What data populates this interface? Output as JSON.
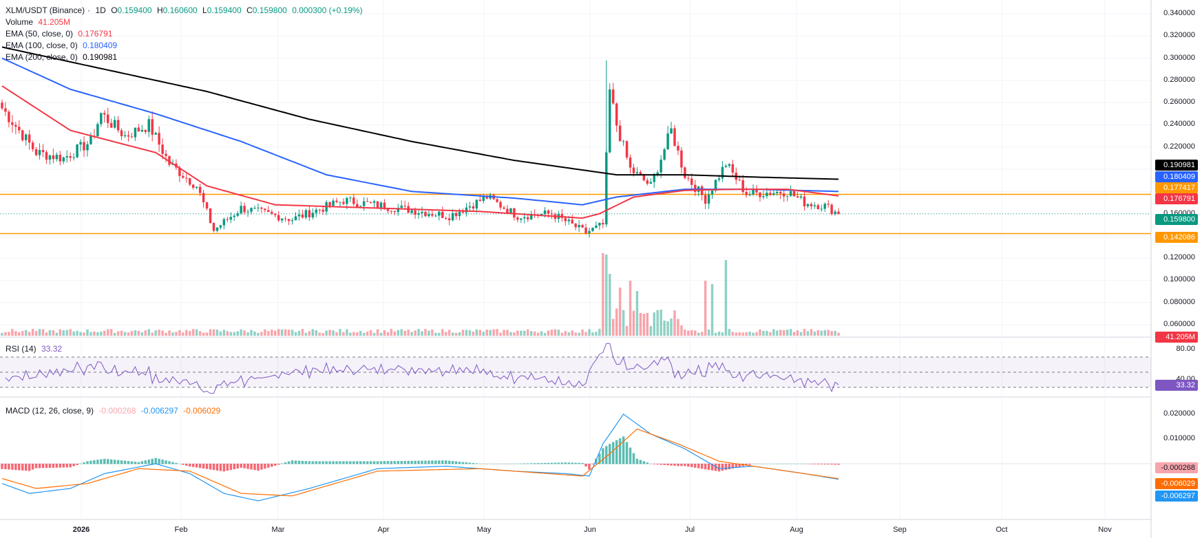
{
  "main_legend": {
    "symbol": "XLM/USDT (Binance)",
    "interval": "1D",
    "open_label": "O",
    "open": "0.159400",
    "high_label": "H",
    "high": "0.160600",
    "low_label": "L",
    "low": "0.159400",
    "close_label": "C",
    "close": "0.159800",
    "change": "0.000300 (+0.19%)"
  },
  "volume_legend": {
    "label": "Volume",
    "value": "41.205M"
  },
  "ema_legends": [
    {
      "label": "EMA (50, close, 0)",
      "value": "0.176791",
      "color": "#f23645"
    },
    {
      "label": "EMA (100, close, 0)",
      "value": "0.180409",
      "color": "#2962ff"
    },
    {
      "label": "EMA (200, close, 0)",
      "value": "0.190981",
      "color": "#000000"
    }
  ],
  "rsi_legend": {
    "label": "RSI (14)",
    "value": "33.32"
  },
  "macd_legend": {
    "label": "MACD (12, 26, close, 9)",
    "hist": "-0.000268",
    "macd": "-0.006297",
    "signal": "-0.006029"
  },
  "price_axis": [
    "0.340000",
    "0.320000",
    "0.300000",
    "0.280000",
    "0.260000",
    "0.240000",
    "0.220000",
    "0.200000",
    "0.180000",
    "0.160000",
    "0.140000",
    "0.120000",
    "0.100000",
    "0.080000",
    "0.060000"
  ],
  "rsi_axis": [
    "80.00",
    "40.00"
  ],
  "macd_axis": [
    "0.020000",
    "0.010000"
  ],
  "time_axis": [
    {
      "label": "2026",
      "bold": true
    },
    {
      "label": "Feb",
      "bold": false
    },
    {
      "label": "Mar",
      "bold": false
    },
    {
      "label": "Apr",
      "bold": false
    },
    {
      "label": "May",
      "bold": false
    },
    {
      "label": "Jun",
      "bold": false
    },
    {
      "label": "Jul",
      "bold": false
    },
    {
      "label": "Aug",
      "bold": false
    },
    {
      "label": "Sep",
      "bold": false
    },
    {
      "label": "Oct",
      "bold": false
    },
    {
      "label": "Nov",
      "bold": false
    }
  ],
  "price_tags": [
    {
      "value": "0.190981",
      "color": "#000000"
    },
    {
      "value": "0.180409",
      "color": "#2962ff"
    },
    {
      "value": "0.177417",
      "color": "#ff9800"
    },
    {
      "value": "0.176791",
      "color": "#f23645"
    },
    {
      "value": "0.159800",
      "color": "#089981"
    },
    {
      "value": "0.142086",
      "color": "#ff9800"
    },
    {
      "value": "41.205M",
      "color": "#f23645"
    }
  ],
  "rsi_tag": {
    "value": "33.32",
    "color": "#7e57c2"
  },
  "macd_tags": [
    {
      "value": "-0.000268",
      "color": "#f7a5ac",
      "text_color": "#131722"
    },
    {
      "value": "-0.006029",
      "color": "#ff6d00",
      "text_color": "#ffffff"
    },
    {
      "value": "-0.006297",
      "color": "#2196f3",
      "text_color": "#ffffff"
    }
  ],
  "colors": {
    "up": "#089981",
    "down": "#f23645",
    "ema50": "#f23645",
    "ema100": "#2962ff",
    "ema200": "#000000",
    "level": "#ff9800",
    "rsi": "#7e57c2",
    "macd": "#2196f3",
    "signal": "#ff6d00"
  },
  "chart_data": [
    {
      "type": "candlestick",
      "title": "XLM/USDT (Binance), 1D",
      "x_range": [
        "2025-12-10",
        "2026-08-12"
      ],
      "ylim": [
        0.13,
        0.345
      ],
      "horizontal_levels": [
        0.177417,
        0.142086
      ],
      "last_price": 0.1598,
      "ohlc_keypoints": [
        {
          "date": "2025-12-10",
          "close": 0.255
        },
        {
          "date": "2025-12-20",
          "close": 0.215
        },
        {
          "date": "2025-12-28",
          "close": 0.21
        },
        {
          "date": "2026-01-05",
          "close": 0.225
        },
        {
          "date": "2026-01-08",
          "close": 0.25
        },
        {
          "date": "2026-01-15",
          "close": 0.23
        },
        {
          "date": "2026-01-22",
          "close": 0.24
        },
        {
          "date": "2026-01-28",
          "close": 0.205
        },
        {
          "date": "2026-02-05",
          "close": 0.185
        },
        {
          "date": "2026-02-10",
          "close": 0.145
        },
        {
          "date": "2026-02-18",
          "close": 0.165
        },
        {
          "date": "2026-03-05",
          "close": 0.155
        },
        {
          "date": "2026-03-20",
          "close": 0.172
        },
        {
          "date": "2026-04-05",
          "close": 0.165
        },
        {
          "date": "2026-04-20",
          "close": 0.158
        },
        {
          "date": "2026-05-01",
          "close": 0.175
        },
        {
          "date": "2026-05-10",
          "close": 0.158
        },
        {
          "date": "2026-05-20",
          "close": 0.16
        },
        {
          "date": "2026-05-30",
          "close": 0.143
        },
        {
          "date": "2026-06-04",
          "close": 0.15
        },
        {
          "date": "2026-06-06",
          "close": 0.27
        },
        {
          "date": "2026-06-08",
          "close": 0.24
        },
        {
          "date": "2026-06-12",
          "close": 0.2
        },
        {
          "date": "2026-06-18",
          "close": 0.185
        },
        {
          "date": "2026-06-24",
          "close": 0.235
        },
        {
          "date": "2026-06-28",
          "close": 0.195
        },
        {
          "date": "2026-07-04",
          "close": 0.173
        },
        {
          "date": "2026-07-10",
          "close": 0.205
        },
        {
          "date": "2026-07-16",
          "close": 0.178
        },
        {
          "date": "2026-07-28",
          "close": 0.18
        },
        {
          "date": "2026-08-02",
          "close": 0.17
        },
        {
          "date": "2026-08-08",
          "close": 0.167
        },
        {
          "date": "2026-08-12",
          "close": 0.1598
        }
      ],
      "ema50_keypoints": [
        [
          0,
          0.275
        ],
        [
          20,
          0.235
        ],
        [
          45,
          0.215
        ],
        [
          60,
          0.185
        ],
        [
          80,
          0.168
        ],
        [
          110,
          0.165
        ],
        [
          140,
          0.162
        ],
        [
          170,
          0.156
        ],
        [
          175,
          0.16
        ],
        [
          185,
          0.175
        ],
        [
          200,
          0.181
        ],
        [
          215,
          0.182
        ],
        [
          230,
          0.182
        ],
        [
          245,
          0.176
        ]
      ],
      "ema100_keypoints": [
        [
          0,
          0.3
        ],
        [
          20,
          0.272
        ],
        [
          45,
          0.25
        ],
        [
          70,
          0.225
        ],
        [
          95,
          0.195
        ],
        [
          120,
          0.18
        ],
        [
          150,
          0.174
        ],
        [
          170,
          0.168
        ],
        [
          180,
          0.175
        ],
        [
          200,
          0.182
        ],
        [
          220,
          0.182
        ],
        [
          245,
          0.18
        ]
      ],
      "ema200_keypoints": [
        [
          0,
          0.31
        ],
        [
          30,
          0.29
        ],
        [
          60,
          0.27
        ],
        [
          90,
          0.245
        ],
        [
          120,
          0.225
        ],
        [
          150,
          0.208
        ],
        [
          180,
          0.195
        ],
        [
          200,
          0.195
        ],
        [
          220,
          0.193
        ],
        [
          245,
          0.191
        ]
      ]
    },
    {
      "type": "bar",
      "title": "Volume",
      "last_value": "41.205M",
      "peaks": [
        {
          "date": "2026-06-05",
          "relative": 1.0
        },
        {
          "date": "2026-06-12",
          "relative": 0.8
        },
        {
          "date": "2026-07-09",
          "relative": 0.9
        }
      ]
    },
    {
      "type": "line",
      "title": "RSI (14)",
      "ylim": [
        20,
        90
      ],
      "bands": [
        70,
        50,
        30
      ],
      "last_value": 33.32
    },
    {
      "type": "line",
      "title": "MACD (12, 26, close, 9)",
      "ylim": [
        -0.012,
        0.024
      ],
      "series": [
        {
          "name": "MACD",
          "last": -0.006297
        },
        {
          "name": "Signal",
          "last": -0.006029
        },
        {
          "name": "Histogram",
          "last": -0.000268
        }
      ]
    }
  ]
}
